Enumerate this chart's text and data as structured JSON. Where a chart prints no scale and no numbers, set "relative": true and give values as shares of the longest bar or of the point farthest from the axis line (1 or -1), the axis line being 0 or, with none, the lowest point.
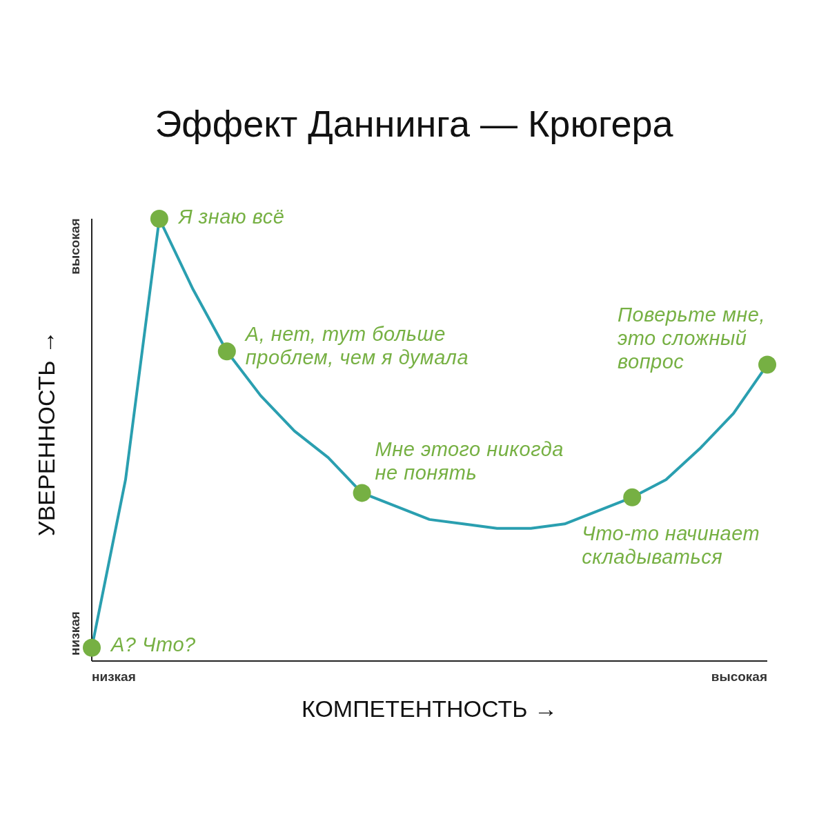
{
  "chart_data": {
    "type": "line",
    "title": "Эффект Даннинга — Крюгера",
    "xlabel": "КОМПЕТЕНТНОСТЬ →",
    "ylabel": "УВЕРЕННОСТЬ →",
    "relative": true,
    "categories": [
      null,
      null,
      null,
      null,
      null,
      null,
      null,
      null,
      null,
      null,
      null,
      null,
      null,
      null,
      null,
      null,
      null,
      null,
      null,
      null,
      null
    ],
    "series": [
      {
        "color": "#2a9fb0",
        "values": [
          0.03,
          0.41,
          1,
          0.84,
          0.7,
          0.6,
          0.52,
          0.46,
          0.38,
          0.35,
          0.32,
          0.31,
          0.3,
          0.3,
          0.31,
          0.34,
          0.37,
          0.41,
          0.48,
          0.56,
          0.67
        ]
      }
    ],
    "annotations": [
      "А? Что?",
      "Я знаю всё",
      "А, нет, тут больше проблем, чем я думала",
      "Мне этого никогда не понять",
      "Что-то начинает складываться",
      "Поверьте мне, это сложный вопрос",
      "высокая",
      "низкая",
      "низкая",
      "высокая"
    ]
  }
}
